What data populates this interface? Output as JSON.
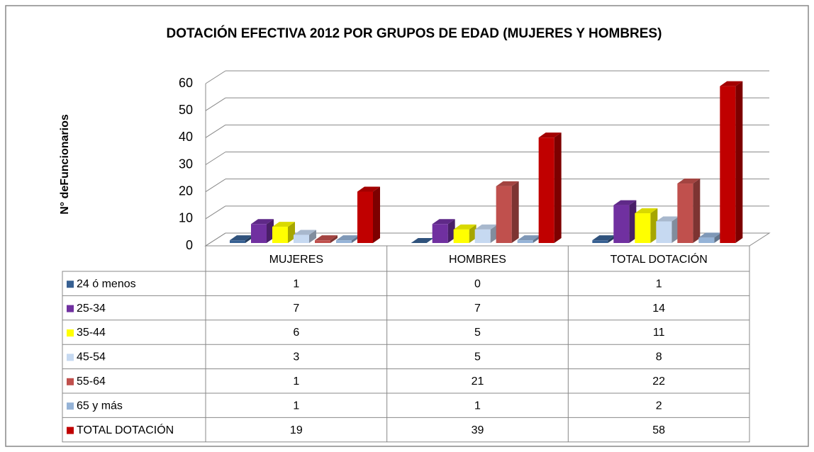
{
  "chart_data": {
    "type": "bar3d",
    "title": "DOTACIÓN EFECTIVA 2012 POR GRUPOS DE EDAD (MUJERES Y HOMBRES)",
    "y_label": "N° deFuncionarios",
    "categories": [
      "MUJERES",
      "HOMBRES",
      "TOTAL DOTACIÓN"
    ],
    "series": [
      {
        "name": "24 ó menos",
        "color": "#376092",
        "values": [
          1,
          0,
          1
        ]
      },
      {
        "name": "25-34",
        "color": "#7030a0",
        "values": [
          7,
          7,
          14
        ]
      },
      {
        "name": "35-44",
        "color": "#ffff00",
        "values": [
          6,
          5,
          11
        ]
      },
      {
        "name": "45-54",
        "color": "#c6d9f1",
        "values": [
          3,
          5,
          8
        ]
      },
      {
        "name": "55-64",
        "color": "#c0504d",
        "values": [
          1,
          21,
          22
        ]
      },
      {
        "name": "65 y más",
        "color": "#95b3d7",
        "values": [
          1,
          1,
          2
        ]
      },
      {
        "name": "TOTAL DOTACIÓN",
        "color": "#c00000",
        "values": [
          19,
          39,
          58
        ]
      }
    ],
    "ylim": [
      0,
      60
    ],
    "yticks": [
      0,
      10,
      20,
      30,
      40,
      50,
      60
    ],
    "grid": true
  }
}
